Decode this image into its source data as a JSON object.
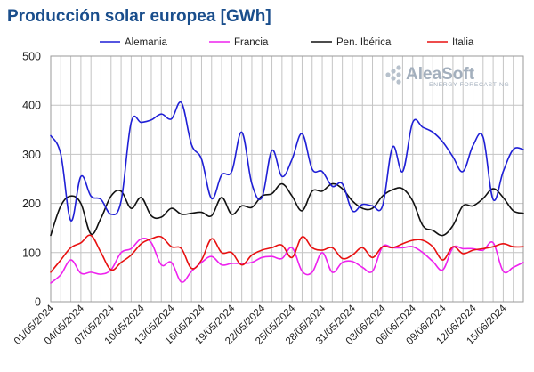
{
  "chart_data": {
    "type": "line",
    "title": "Producción solar europea [GWh]",
    "xlabel": "",
    "ylabel": "",
    "ylim": [
      0,
      500
    ],
    "yticks": [
      0,
      100,
      200,
      300,
      400,
      500
    ],
    "x_tick_labels": [
      "01/05/2024",
      "04/05/2024",
      "07/05/2024",
      "10/05/2024",
      "13/05/2024",
      "16/05/2024",
      "19/05/2024",
      "22/05/2024",
      "25/05/2024",
      "28/05/2024",
      "31/05/2024",
      "03/06/2024",
      "06/06/2024",
      "09/06/2024",
      "12/06/2024",
      "15/06/2024"
    ],
    "x_tick_step_days": 3,
    "num_days": 48,
    "grid": true,
    "legend_position": "top",
    "series": [
      {
        "name": "Alemania",
        "color": "#1f1fd6",
        "values": [
          338,
          300,
          165,
          255,
          215,
          208,
          178,
          205,
          365,
          365,
          370,
          382,
          372,
          405,
          320,
          290,
          210,
          258,
          265,
          345,
          240,
          212,
          308,
          255,
          290,
          342,
          270,
          265,
          235,
          240,
          185,
          198,
          195,
          195,
          315,
          265,
          365,
          355,
          345,
          325,
          295,
          265,
          318,
          335,
          208,
          265,
          310,
          310
        ]
      },
      {
        "name": "Francia",
        "color": "#ee22ee",
        "values": [
          38,
          55,
          85,
          58,
          60,
          56,
          65,
          100,
          108,
          128,
          120,
          75,
          80,
          40,
          62,
          80,
          92,
          75,
          78,
          78,
          80,
          90,
          92,
          88,
          110,
          62,
          60,
          100,
          60,
          80,
          82,
          70,
          62,
          112,
          110,
          110,
          112,
          100,
          82,
          65,
          110,
          108,
          108,
          105,
          120,
          62,
          70,
          80
        ]
      },
      {
        "name": "Pen. Ibérica",
        "color": "#111111",
        "values": [
          135,
          195,
          215,
          200,
          138,
          170,
          215,
          225,
          190,
          212,
          175,
          172,
          190,
          178,
          180,
          182,
          175,
          212,
          178,
          195,
          192,
          215,
          220,
          240,
          215,
          185,
          225,
          225,
          240,
          230,
          205,
          190,
          190,
          215,
          228,
          230,
          205,
          155,
          145,
          135,
          155,
          195,
          195,
          210,
          230,
          212,
          185,
          180
        ]
      },
      {
        "name": "Italia",
        "color": "#e81010",
        "values": [
          60,
          85,
          110,
          120,
          135,
          100,
          65,
          80,
          95,
          118,
          128,
          132,
          112,
          108,
          68,
          85,
          128,
          100,
          100,
          75,
          95,
          105,
          110,
          115,
          90,
          132,
          110,
          105,
          110,
          88,
          95,
          110,
          90,
          112,
          110,
          118,
          125,
          125,
          112,
          85,
          112,
          98,
          105,
          108,
          112,
          118,
          112,
          112
        ]
      }
    ]
  },
  "logo": {
    "name": "AleaSoft",
    "tagline": "ENERGY FORECASTING"
  }
}
